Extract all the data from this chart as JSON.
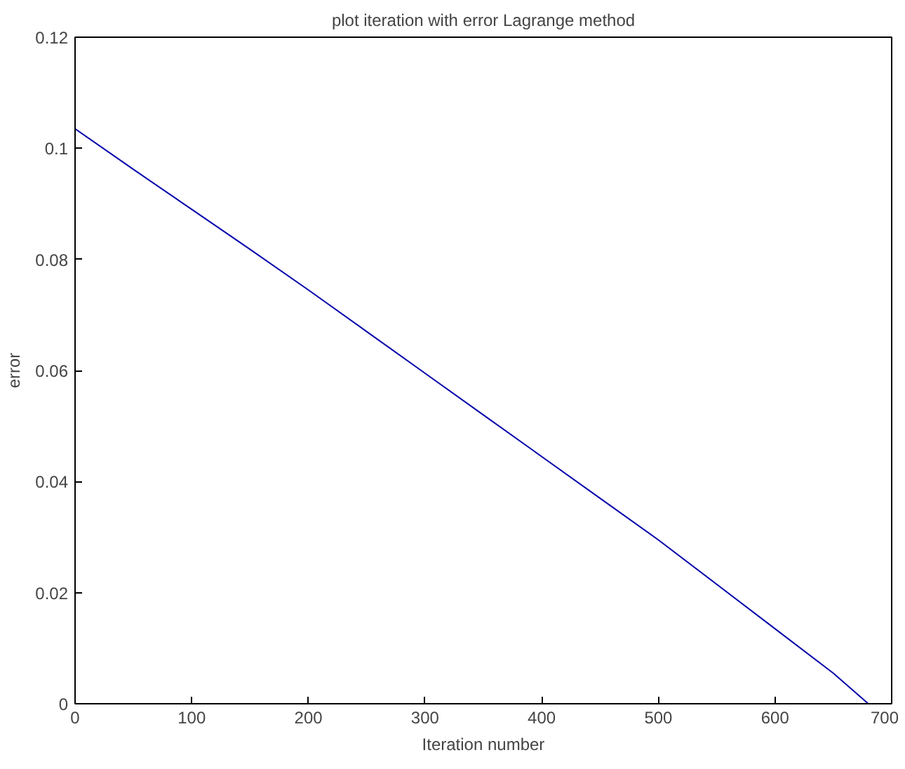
{
  "chart_data": {
    "type": "line",
    "title": "plot iteration with error Lagrange method",
    "xlabel": "Iteration number",
    "ylabel": "error",
    "x": [
      0,
      50,
      100,
      150,
      200,
      250,
      300,
      350,
      400,
      450,
      500,
      550,
      600,
      650,
      680
    ],
    "series": [
      {
        "color": "#0000aa",
        "values": [
          0.1035,
          0.0962,
          0.089,
          0.0818,
          0.0745,
          0.067,
          0.0595,
          0.052,
          0.0445,
          0.037,
          0.0295,
          0.0215,
          0.0135,
          0.0055,
          0.0
        ]
      }
    ],
    "xlim": [
      0,
      700
    ],
    "xticks": [
      0,
      100,
      200,
      300,
      400,
      500,
      600,
      700
    ],
    "ylim": [
      0,
      0.12
    ],
    "yticks": [
      0,
      0.02,
      0.04,
      0.06,
      0.08,
      0.1,
      0.12
    ],
    "grid": false
  }
}
